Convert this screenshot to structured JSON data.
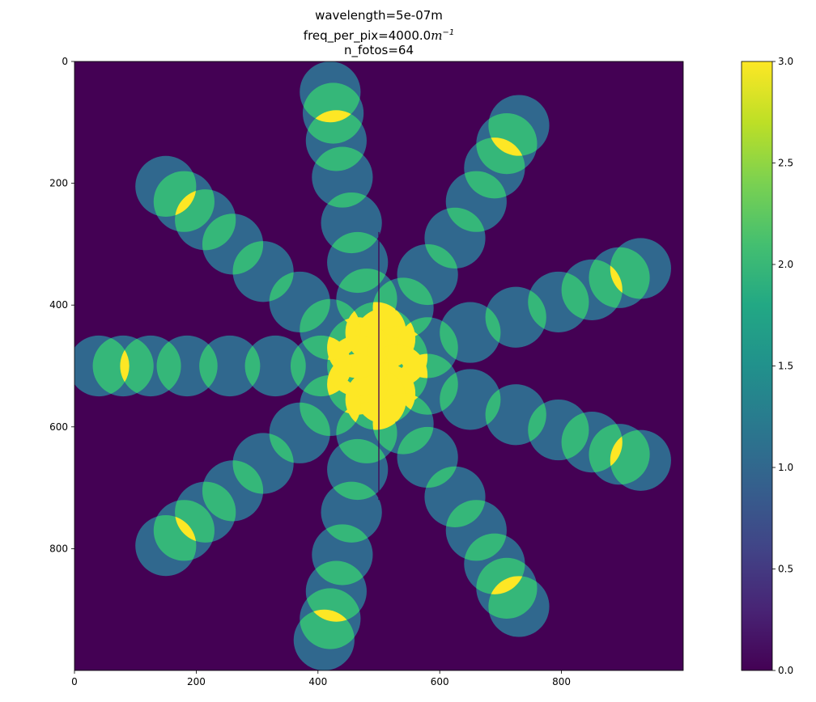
{
  "title": {
    "line1": "wavelength=5e-07m",
    "line2_prefix": "freq_per_pix=4000.0",
    "line2_unit": "m",
    "line2_exp": "−1",
    "line3": "n_fotos=64"
  },
  "chart_data": {
    "type": "heatmap",
    "title": "wavelength=5e-07m | freq_per_pix=4000.0m^-1 | n_fotos=64",
    "xlabel": "",
    "ylabel": "",
    "xlim": [
      0,
      1000
    ],
    "ylim": [
      1000,
      0
    ],
    "x_ticks": [
      0,
      200,
      400,
      600,
      800
    ],
    "y_ticks": [
      0,
      200,
      400,
      600,
      800
    ],
    "colormap": "viridis",
    "colorbar": {
      "min": 0.0,
      "max": 3.0,
      "ticks": [
        "0.0",
        "0.5",
        "1.0",
        "1.5",
        "2.0",
        "2.5",
        "3.0"
      ]
    },
    "background_value": 0,
    "disk_radius": 50,
    "vertical_line": {
      "x": 500,
      "y_from": 280,
      "y_to": 720
    },
    "spokes": [
      [
        [
          420,
          50
        ],
        [
          425,
          85
        ],
        [
          430,
          130
        ],
        [
          440,
          190
        ],
        [
          455,
          265
        ],
        [
          465,
          330
        ],
        [
          480,
          390
        ],
        [
          495,
          445
        ]
      ],
      [
        [
          730,
          105
        ],
        [
          710,
          135
        ],
        [
          690,
          175
        ],
        [
          660,
          230
        ],
        [
          625,
          290
        ],
        [
          580,
          350
        ],
        [
          540,
          405
        ],
        [
          510,
          455
        ]
      ],
      [
        [
          930,
          340
        ],
        [
          895,
          355
        ],
        [
          850,
          375
        ],
        [
          795,
          395
        ],
        [
          725,
          420
        ],
        [
          650,
          445
        ],
        [
          580,
          470
        ],
        [
          530,
          485
        ]
      ],
      [
        [
          930,
          655
        ],
        [
          895,
          645
        ],
        [
          850,
          625
        ],
        [
          795,
          605
        ],
        [
          725,
          580
        ],
        [
          650,
          555
        ],
        [
          580,
          530
        ],
        [
          530,
          515
        ]
      ],
      [
        [
          730,
          895
        ],
        [
          710,
          865
        ],
        [
          690,
          825
        ],
        [
          660,
          770
        ],
        [
          625,
          715
        ],
        [
          580,
          650
        ],
        [
          540,
          595
        ],
        [
          510,
          545
        ]
      ],
      [
        [
          410,
          950
        ],
        [
          420,
          915
        ],
        [
          430,
          870
        ],
        [
          440,
          810
        ],
        [
          455,
          740
        ],
        [
          465,
          670
        ],
        [
          480,
          610
        ],
        [
          495,
          555
        ]
      ],
      [
        [
          150,
          795
        ],
        [
          180,
          770
        ],
        [
          215,
          740
        ],
        [
          260,
          705
        ],
        [
          310,
          660
        ],
        [
          370,
          610
        ],
        [
          420,
          565
        ],
        [
          465,
          530
        ]
      ],
      [
        [
          40,
          500
        ],
        [
          80,
          500
        ],
        [
          125,
          500
        ],
        [
          185,
          500
        ],
        [
          255,
          500
        ],
        [
          330,
          500
        ],
        [
          405,
          500
        ],
        [
          465,
          500
        ]
      ],
      [
        [
          150,
          205
        ],
        [
          180,
          230
        ],
        [
          215,
          260
        ],
        [
          260,
          300
        ],
        [
          310,
          345
        ],
        [
          370,
          395
        ],
        [
          420,
          440
        ],
        [
          465,
          470
        ]
      ]
    ]
  }
}
